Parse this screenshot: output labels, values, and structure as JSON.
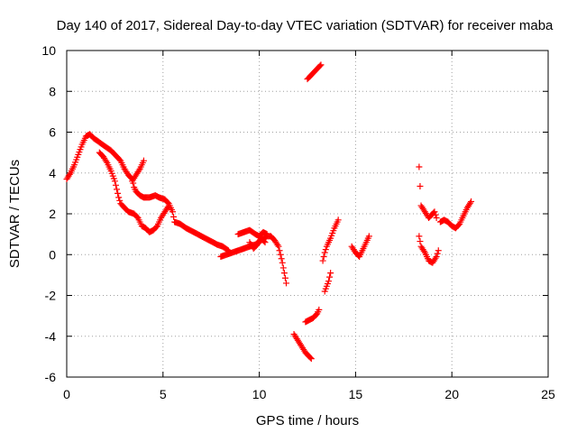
{
  "chart_data": {
    "type": "scatter",
    "title": "Day 140 of 2017, Sidereal Day-to-day VTEC variation (SDTVAR) for receiver maba",
    "xlabel": "GPS time / hours",
    "ylabel": "SDTVAR / TECUs",
    "xlim": [
      0,
      25
    ],
    "ylim": [
      -6,
      10
    ],
    "xticks": [
      0,
      5,
      10,
      15,
      20,
      25
    ],
    "yticks": [
      -6,
      -4,
      -2,
      0,
      2,
      4,
      6,
      8,
      10
    ],
    "xtick_labels": [
      "0",
      "5",
      "10",
      "15",
      "20",
      "25"
    ],
    "ytick_labels": [
      "-6",
      "-4",
      "-2",
      "0",
      "2",
      "4",
      "6",
      "8",
      "10"
    ],
    "grid": true,
    "legend": "none",
    "marker": "+",
    "color": "#ff0000",
    "series": [
      {
        "segments": [
          [
            [
              0.0,
              3.7
            ],
            [
              0.2,
              4.0
            ],
            [
              0.4,
              4.4
            ],
            [
              0.6,
              4.9
            ],
            [
              0.8,
              5.4
            ],
            [
              1.0,
              5.8
            ],
            [
              1.2,
              5.9
            ],
            [
              1.4,
              5.7
            ],
            [
              1.7,
              5.5
            ],
            [
              2.0,
              5.3
            ],
            [
              2.3,
              5.1
            ],
            [
              2.6,
              4.8
            ],
            [
              2.8,
              4.6
            ],
            [
              3.0,
              4.2
            ],
            [
              3.2,
              3.9
            ],
            [
              3.4,
              3.7
            ],
            [
              3.5,
              3.3
            ],
            [
              3.6,
              3.1
            ],
            [
              3.8,
              2.9
            ],
            [
              4.0,
              2.8
            ],
            [
              4.3,
              2.8
            ],
            [
              4.6,
              2.9
            ],
            [
              4.8,
              2.8
            ],
            [
              5.1,
              2.7
            ],
            [
              5.3,
              2.5
            ],
            [
              5.5,
              2.1
            ],
            [
              5.6,
              1.6
            ],
            [
              5.9,
              1.5
            ],
            [
              6.2,
              1.3
            ],
            [
              6.6,
              1.1
            ],
            [
              7.0,
              0.9
            ],
            [
              7.4,
              0.7
            ],
            [
              7.8,
              0.5
            ],
            [
              8.1,
              0.4
            ],
            [
              8.4,
              0.2
            ]
          ],
          [
            [
              1.7,
              5.0
            ],
            [
              1.9,
              4.8
            ],
            [
              2.1,
              4.5
            ],
            [
              2.3,
              4.1
            ],
            [
              2.5,
              3.6
            ],
            [
              2.6,
              3.2
            ],
            [
              2.7,
              2.8
            ],
            [
              2.8,
              2.5
            ],
            [
              3.0,
              2.3
            ],
            [
              3.2,
              2.1
            ],
            [
              3.5,
              2.0
            ],
            [
              3.7,
              1.8
            ],
            [
              3.9,
              1.4
            ],
            [
              4.1,
              1.3
            ],
            [
              4.3,
              1.1
            ],
            [
              4.5,
              1.2
            ],
            [
              4.7,
              1.4
            ],
            [
              4.9,
              1.8
            ],
            [
              5.1,
              2.1
            ],
            [
              5.3,
              2.4
            ]
          ],
          [
            [
              3.4,
              3.6
            ],
            [
              3.6,
              3.9
            ],
            [
              3.8,
              4.2
            ],
            [
              4.0,
              4.6
            ]
          ],
          [
            [
              8.0,
              -0.1
            ],
            [
              8.3,
              0.0
            ],
            [
              8.6,
              0.1
            ],
            [
              8.9,
              0.2
            ],
            [
              9.2,
              0.3
            ],
            [
              9.5,
              0.4
            ],
            [
              9.8,
              0.5
            ],
            [
              10.1,
              0.7
            ],
            [
              10.4,
              0.9
            ],
            [
              10.6,
              0.9
            ],
            [
              10.8,
              0.7
            ],
            [
              11.0,
              0.4
            ],
            [
              11.1,
              0.0
            ],
            [
              11.2,
              -0.4
            ],
            [
              11.3,
              -0.9
            ],
            [
              11.4,
              -1.4
            ]
          ],
          [
            [
              8.9,
              1.0
            ],
            [
              9.2,
              1.1
            ],
            [
              9.5,
              1.2
            ],
            [
              9.8,
              1.0
            ],
            [
              10.0,
              0.9
            ],
            [
              10.2,
              1.1
            ],
            [
              10.4,
              1.0
            ]
          ],
          [
            [
              9.5,
              0.6
            ],
            [
              9.7,
              0.3
            ],
            [
              9.9,
              0.5
            ],
            [
              10.1,
              0.8
            ],
            [
              10.3,
              0.6
            ]
          ],
          [
            [
              11.8,
              -3.9
            ],
            [
              12.0,
              -4.2
            ],
            [
              12.2,
              -4.5
            ],
            [
              12.4,
              -4.8
            ],
            [
              12.6,
              -5.0
            ],
            [
              12.7,
              -5.1
            ]
          ],
          [
            [
              12.4,
              -3.3
            ],
            [
              12.6,
              -3.2
            ],
            [
              12.8,
              -3.1
            ],
            [
              13.0,
              -2.9
            ],
            [
              13.1,
              -2.7
            ]
          ],
          [
            [
              12.5,
              8.6
            ],
            [
              12.7,
              8.8
            ],
            [
              12.9,
              9.0
            ],
            [
              13.1,
              9.2
            ],
            [
              13.2,
              9.3
            ]
          ],
          [
            [
              13.3,
              -0.3
            ],
            [
              13.4,
              0.1
            ],
            [
              13.5,
              0.4
            ],
            [
              13.7,
              0.8
            ],
            [
              13.9,
              1.3
            ],
            [
              14.1,
              1.7
            ]
          ],
          [
            [
              13.4,
              -1.8
            ],
            [
              13.6,
              -1.3
            ],
            [
              13.7,
              -0.9
            ]
          ],
          [
            [
              14.8,
              0.4
            ],
            [
              15.0,
              0.1
            ],
            [
              15.2,
              -0.1
            ],
            [
              15.3,
              0.1
            ],
            [
              15.5,
              0.5
            ],
            [
              15.7,
              0.9
            ]
          ],
          [
            [
              18.3,
              4.3
            ],
            [
              18.4,
              2.4
            ],
            [
              18.6,
              2.1
            ],
            [
              18.8,
              1.8
            ],
            [
              18.9,
              1.9
            ],
            [
              19.1,
              2.1
            ],
            [
              19.2,
              1.8
            ]
          ],
          [
            [
              18.3,
              0.9
            ],
            [
              18.4,
              0.4
            ],
            [
              18.6,
              0.1
            ],
            [
              18.8,
              -0.3
            ],
            [
              19.0,
              -0.4
            ],
            [
              19.2,
              -0.1
            ],
            [
              19.3,
              0.2
            ]
          ],
          [
            [
              19.4,
              1.6
            ],
            [
              19.6,
              1.7
            ],
            [
              19.8,
              1.6
            ],
            [
              20.0,
              1.4
            ],
            [
              20.2,
              1.3
            ],
            [
              20.4,
              1.5
            ],
            [
              20.6,
              1.9
            ],
            [
              20.8,
              2.3
            ],
            [
              21.0,
              2.6
            ]
          ]
        ]
      }
    ]
  }
}
